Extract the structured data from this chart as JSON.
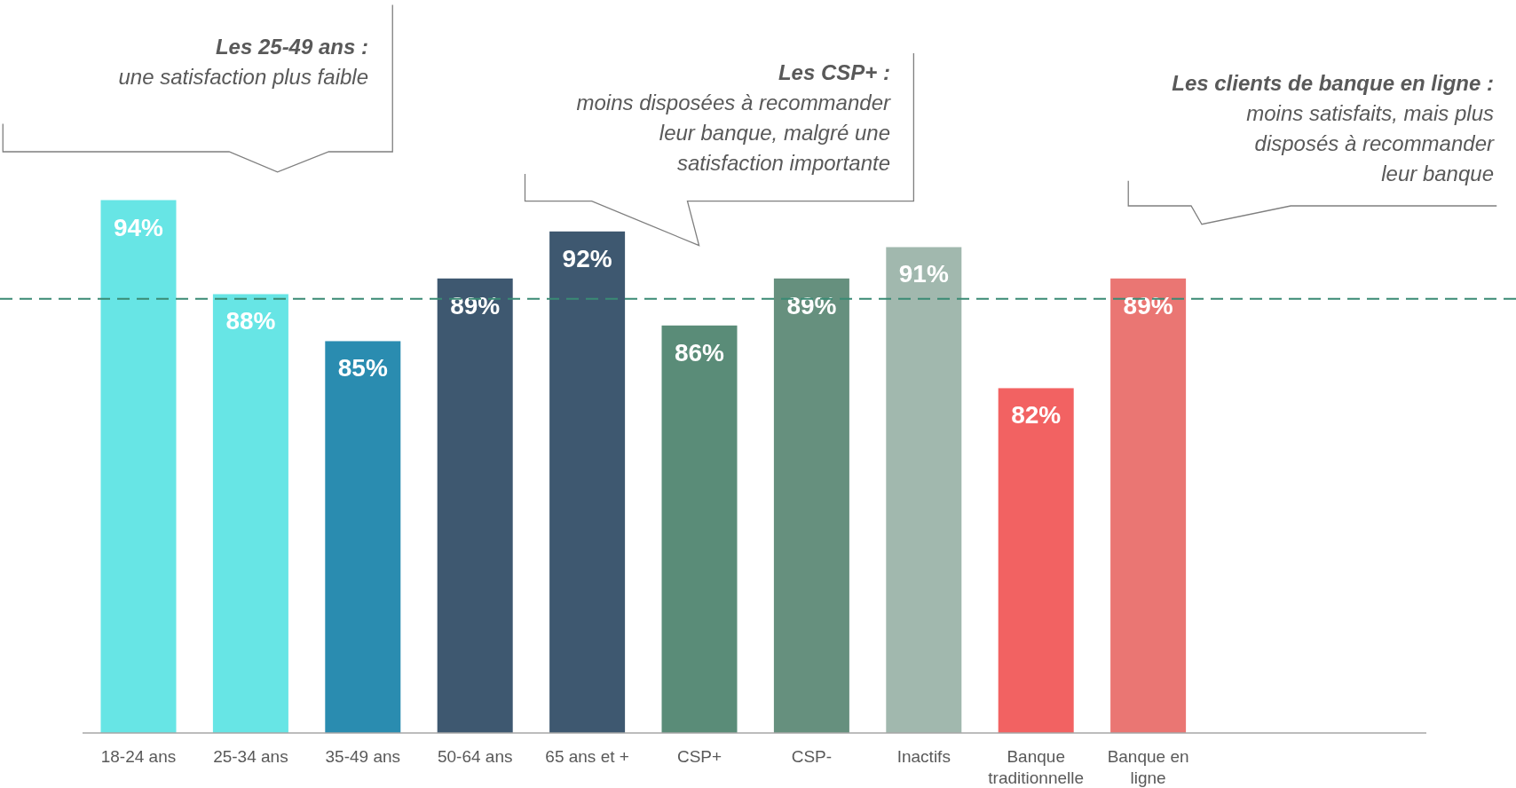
{
  "chart_data": {
    "type": "bar",
    "categories": [
      "18-24 ans",
      "25-34 ans",
      "35-49 ans",
      "50-64 ans",
      "65 ans et +",
      "CSP+",
      "CSP-",
      "Inactifs",
      "Banque traditionnelle",
      "Banque en ligne"
    ],
    "values": [
      94,
      88,
      85,
      89,
      92,
      86,
      89,
      91,
      82,
      89
    ],
    "colors": [
      "#67e5e5",
      "#67e5e5",
      "#2a8cb0",
      "#3e5870",
      "#3e5870",
      "#5a8c78",
      "#66907e",
      "#a1b8ae",
      "#f26262",
      "#ea7673"
    ],
    "value_labels": [
      "94%",
      "88%",
      "85%",
      "89%",
      "92%",
      "86%",
      "89%",
      "91%",
      "82%",
      "89%"
    ],
    "ylim": [
      60,
      94
    ],
    "tick_labels": "x",
    "ref_lines": [
      {
        "axis": "y",
        "value": 87.7,
        "color": "#3a8a74",
        "line_style": "dashed"
      }
    ],
    "annotations": [
      "Les 25-49 ans :\nune satisfaction plus faible",
      "Les CSP+ :\nmoins disposées à recommander\nleur banque, malgré une\nsatisfaction importante",
      "Les clients de banque en ligne :\nmoins satisfaits, mais plus\ndisposés à recommander\nleur banque"
    ]
  }
}
